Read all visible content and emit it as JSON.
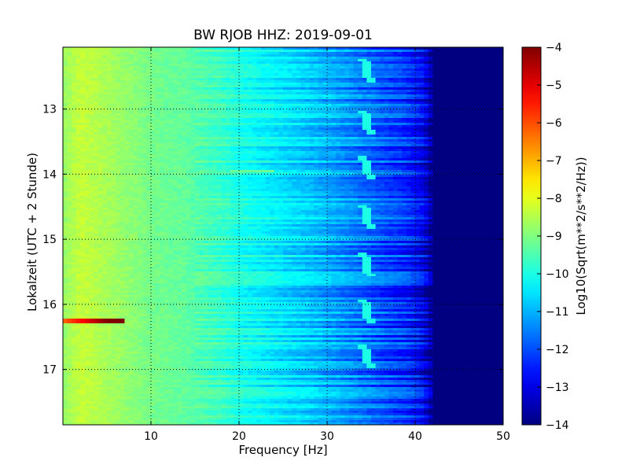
{
  "chart_data": {
    "type": "heatmap",
    "title": "BW RJOB HHZ: 2019-09-01",
    "xlabel": "Frequency [Hz]",
    "ylabel": "Lokalzeit (UTC + 2 Stunde)",
    "xlim": [
      0,
      50
    ],
    "ylim": [
      12.05,
      17.85
    ],
    "y_inverted": true,
    "x_ticks": [
      10,
      20,
      30,
      40,
      50
    ],
    "x_tick_labels": [
      "10",
      "20",
      "30",
      "40",
      "50"
    ],
    "y_ticks": [
      13,
      14,
      15,
      16,
      17
    ],
    "y_tick_labels": [
      "13",
      "14",
      "15",
      "16",
      "17"
    ],
    "grid": true,
    "colormap": "jet",
    "colorbar": {
      "label": "Log10(Sqrt(m**2/s**2/Hz))",
      "range": [
        -14,
        -4
      ],
      "ticks": [
        -4,
        -5,
        -6,
        -7,
        -8,
        -9,
        -10,
        -11,
        -12,
        -13,
        -14
      ],
      "tick_labels": [
        "−4",
        "−5",
        "−6",
        "−7",
        "−8",
        "−9",
        "−10",
        "−11",
        "−12",
        "−13",
        "−14"
      ]
    },
    "spectrum_profile": {
      "frequency_hz": [
        0,
        2,
        5,
        8,
        10,
        14,
        18,
        20,
        24,
        28,
        32,
        36,
        39,
        41,
        42,
        45,
        50
      ],
      "log10_amplitude": [
        -8.8,
        -8.3,
        -8.6,
        -8.9,
        -9.1,
        -9.3,
        -9.7,
        -10.0,
        -10.4,
        -10.8,
        -11.3,
        -11.9,
        -12.3,
        -12.9,
        -14.0,
        -14.0,
        -14.0
      ]
    },
    "features": [
      {
        "name": "narrow line near 34.5 Hz",
        "frequency_hz": 34.5,
        "times": [
          12.4,
          13.2,
          13.9,
          14.65,
          15.4,
          16.1,
          16.8
        ],
        "log10_amplitude": -10.0
      },
      {
        "name": "low-frequency burst",
        "frequency_hz": 1.0,
        "time": 16.25,
        "log10_amplitude": -5.8
      },
      {
        "name": "broadband event",
        "time": 13.95,
        "frequency_range_hz": [
          19,
          24
        ],
        "log10_amplitude": -9.2
      }
    ]
  }
}
